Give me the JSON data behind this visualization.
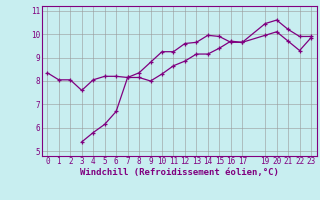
{
  "xlabel": "Windchill (Refroidissement éolien,°C)",
  "bg_color": "#c8eef0",
  "line1_x": [
    0,
    1,
    2,
    3,
    4,
    5,
    6,
    7,
    8,
    9,
    10,
    11,
    12,
    13,
    14,
    15,
    16,
    17,
    19,
    20,
    21,
    22,
    23
  ],
  "line1_y": [
    8.35,
    8.05,
    8.05,
    7.6,
    8.05,
    8.2,
    8.2,
    8.15,
    8.35,
    8.8,
    9.25,
    9.25,
    9.6,
    9.65,
    9.95,
    9.9,
    9.65,
    9.65,
    10.45,
    10.6,
    10.2,
    9.9,
    9.9
  ],
  "line2_x": [
    3,
    4,
    5,
    6,
    7,
    8,
    9,
    10,
    11,
    12,
    13,
    14,
    15,
    16,
    17,
    19,
    20,
    21,
    22,
    23
  ],
  "line2_y": [
    5.4,
    5.8,
    6.15,
    6.7,
    8.15,
    8.15,
    8.0,
    8.3,
    8.65,
    8.85,
    9.15,
    9.15,
    9.4,
    9.7,
    9.65,
    9.95,
    10.1,
    9.7,
    9.3,
    9.85
  ],
  "line_color": "#800080",
  "xlim": [
    -0.5,
    23.5
  ],
  "ylim": [
    4.8,
    11.2
  ],
  "xticks": [
    0,
    1,
    2,
    3,
    4,
    5,
    6,
    7,
    8,
    9,
    10,
    11,
    12,
    13,
    14,
    15,
    16,
    17,
    19,
    20,
    21,
    22,
    23
  ],
  "yticks": [
    5,
    6,
    7,
    8,
    9,
    10,
    11
  ],
  "grid_color": "#999999",
  "tick_fontsize": 5.5,
  "xlabel_fontsize": 6.5
}
